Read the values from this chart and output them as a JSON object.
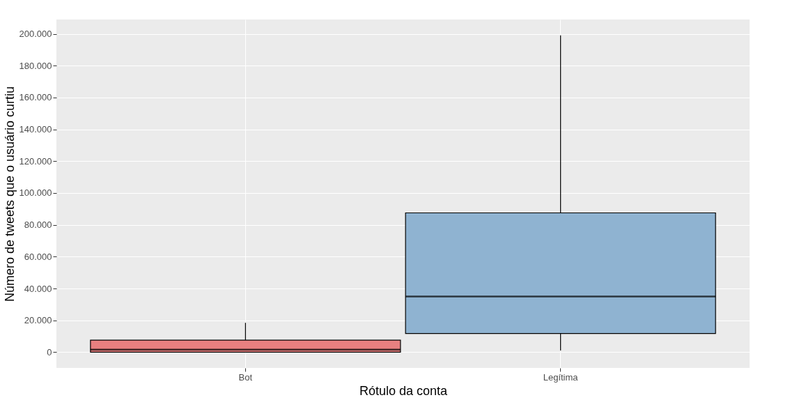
{
  "chart_data": {
    "type": "box",
    "xlabel": "Rótulo da conta",
    "ylabel": "Número de tweets que o usuário curtiu",
    "categories": [
      "Bot",
      "Legítima"
    ],
    "series": [
      {
        "colors": [
          "#e88080",
          "#8fb3d1"
        ],
        "boxes": [
          {
            "low": 0,
            "q1": 0,
            "median": 1600,
            "q3": 7600,
            "high": 18400
          },
          {
            "low": 1000,
            "q1": 11700,
            "median": 35000,
            "q3": 87500,
            "high": 199000
          }
        ]
      }
    ],
    "ylim": [
      -9900,
      209000
    ],
    "yticks": [
      {
        "value": 0,
        "label": "0"
      },
      {
        "value": 20000,
        "label": "20.000"
      },
      {
        "value": 40000,
        "label": "40.000"
      },
      {
        "value": 60000,
        "label": "60.000"
      },
      {
        "value": 80000,
        "label": "80.000"
      },
      {
        "value": 100000,
        "label": "100.000"
      },
      {
        "value": 120000,
        "label": "120.000"
      },
      {
        "value": 140000,
        "label": "140.000"
      },
      {
        "value": 160000,
        "label": "160.000"
      },
      {
        "value": 180000,
        "label": "180.000"
      },
      {
        "value": 200000,
        "label": "200.000"
      }
    ],
    "grid": true
  }
}
